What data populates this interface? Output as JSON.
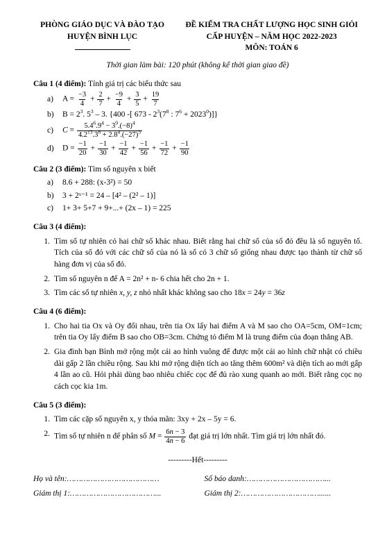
{
  "header": {
    "left_line1": "PHÒNG GIÁO DỤC VÀ ĐÀO TẠO",
    "left_line2": "HUYỆN BÌNH LỤC",
    "right_line1": "ĐỀ KIỂM TRA CHẤT LƯỢNG HỌC SINH GIỎI",
    "right_line2": "CẤP HUYỆN – NĂM HỌC 2022-2023",
    "right_line3": "MÔN:  TOÁN 6",
    "time": "Thời gian làm bài: 120 phút (không kể thời gian giao đề)"
  },
  "q1": {
    "title": "Câu 1 (4 điểm):",
    "desc": " Tính giá trị các biểu thức sau"
  },
  "q2": {
    "title": "Câu 2 (3 điểm):",
    "desc": " Tìm số nguyên x biết",
    "a": "8.6 + 288: (x-3²) = 50",
    "b": "3 + 2ˣ⁻¹ = 24 – [4² – (2² – 1)]",
    "c": "1+ 3+ 5+7 + 9+...+ (2x – 1) = 225"
  },
  "q3": {
    "title": "Câu 3 (4 điểm):",
    "item1": "Tìm số tự nhiên có hai chữ số khác nhau. Biết rằng hai chữ số của số đó đều là số nguyên tố. Tích của số đó với các chữ số của nó là số có 3 chữ số giống nhau được tạo thành từ chữ số hàng đơn vị của số đó.",
    "item2": "Tìm số nguyên n để A = 2n² + n- 6 chia hết cho 2n + 1.",
    "item3a": "Tìm các số tự nhiên ",
    "item3b": " nhỏ nhất khác không sao cho "
  },
  "q4": {
    "title": "Câu 4 (6 điểm):",
    "item1": "Cho hai tia Ox và Oy đối nhau, trên tia Ox lấy hai điểm A và M sao cho OA=5cm, OM=1cm; trên tia Oy lấy điểm B sao cho OB=3cm. Chứng tỏ điểm M là trung điểm của đoạn thẳng AB.",
    "item2": "Gia đình bạn Bình mở rộng một cái ao hình vuông để được một cái ao hình chữ nhật có chiều dài gấp 2 lần chiều rộng. Sau khi mở rộng diện tích ao tăng thêm 600m² và diện tích ao mới gấp 4 lần ao cũ. Hỏi phải dùng bao nhiêu chiếc cọc để đủ rào xung quanh ao mới. Biết rằng cọc nọ cách cọc kia 1m."
  },
  "q5": {
    "title": "Câu 5 (3 điểm):",
    "item1": "Tìm các cặp số nguyên x, y thỏa mãn: 3xy + 2x – 5y = 6.",
    "item2a": "Tìm số tự nhiên n để phân số ",
    "item2b": " đạt giá trị lớn nhất. Tìm giá trị lớn nhất đó."
  },
  "footer": {
    "end": "---------Hết---------",
    "name": "Họ và tên:…………………………………",
    "sbd": "Số báo danh:……………………………...",
    "gt1": "Giám thị 1:………………………………...",
    "gt2": "Giám thị 2:……………………………......"
  }
}
